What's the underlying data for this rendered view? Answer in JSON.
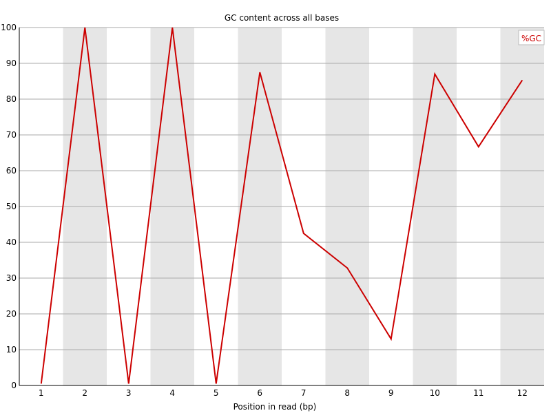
{
  "chart_data": {
    "type": "line",
    "title": "GC content across all bases",
    "xlabel": "Position in read (bp)",
    "ylabel": "",
    "categories": [
      "1",
      "2",
      "3",
      "4",
      "5",
      "6",
      "7",
      "8",
      "9",
      "10",
      "11",
      "12"
    ],
    "series": [
      {
        "name": "%GC",
        "values": [
          0.5,
          100,
          0.5,
          100,
          0.5,
          87.5,
          42.5,
          32.8,
          13.0,
          87.0,
          66.7,
          85.3
        ]
      }
    ],
    "ylim": [
      0,
      100
    ],
    "yticks": [
      0,
      10,
      20,
      30,
      40,
      50,
      60,
      70,
      80,
      90,
      100
    ],
    "grid": true,
    "legend_position": "top-right",
    "colors": {
      "series": "#cc0000",
      "band": "#e6e6e6",
      "grid": "#aaaaaa",
      "axis": "#000000"
    }
  }
}
